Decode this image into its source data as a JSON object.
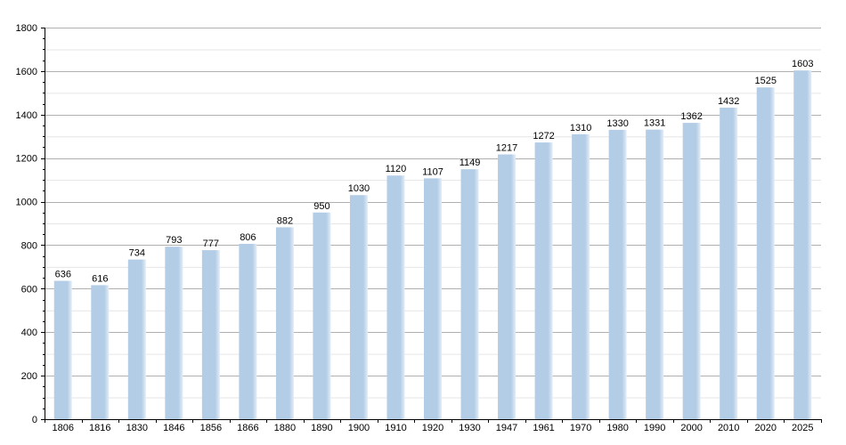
{
  "chart_data": {
    "type": "bar",
    "title": "",
    "xlabel": "",
    "ylabel": "",
    "categories": [
      "1806",
      "1816",
      "1830",
      "1846",
      "1856",
      "1866",
      "1880",
      "1890",
      "1900",
      "1910",
      "1920",
      "1930",
      "1947",
      "1961",
      "1970",
      "1980",
      "1990",
      "2000",
      "2010",
      "2020",
      "2025"
    ],
    "values": [
      636,
      616,
      734,
      793,
      777,
      806,
      882,
      950,
      1030,
      1120,
      1107,
      1149,
      1217,
      1272,
      1310,
      1330,
      1331,
      1362,
      1432,
      1525,
      1603
    ],
    "ylim": [
      0,
      1800
    ],
    "yticks": [
      0,
      200,
      400,
      600,
      800,
      1000,
      1200,
      1400,
      1600,
      1800
    ],
    "grid": true,
    "legend": "none",
    "colors": {
      "bar": "#b4cde6",
      "bar_edge": "#e4edf7",
      "grid_major": "#b0b0b0",
      "grid_minor": "#e6e6e6",
      "axis": "#000000"
    }
  }
}
